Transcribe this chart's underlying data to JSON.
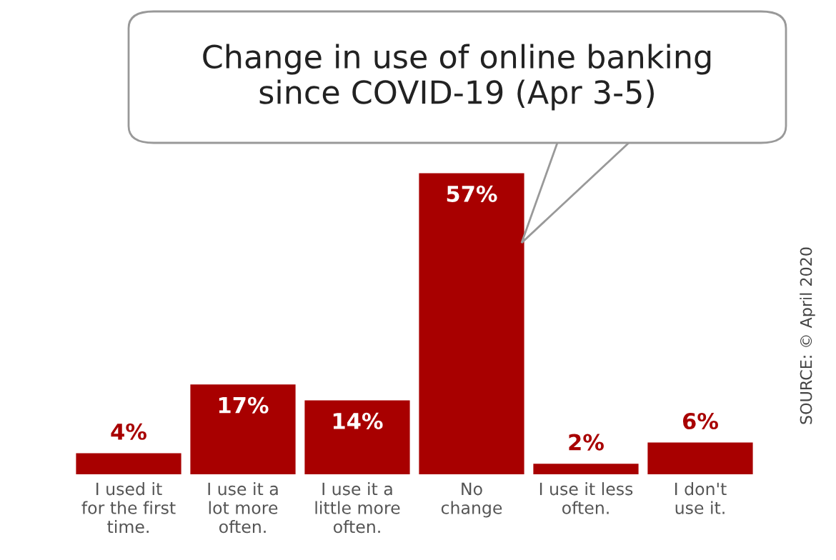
{
  "chart_data": {
    "type": "bar",
    "title": "Change in use of online banking\nsince COVID-19 (Apr 3-5)",
    "categories": [
      "I used it\nfor the first\ntime.",
      "I use it a\nlot more\noften.",
      "I use it a\nlittle more\noften.",
      "No\nchange",
      "I use it less\noften.",
      "I don't\nuse it."
    ],
    "values": [
      4,
      17,
      14,
      57,
      2,
      6
    ],
    "color": "#a80000",
    "value_labels": [
      "4%",
      "17%",
      "14%",
      "57%",
      "2%",
      "6%"
    ],
    "annotations": [
      "SOURCE: © April 2020"
    ],
    "grid": false,
    "legend": false
  }
}
